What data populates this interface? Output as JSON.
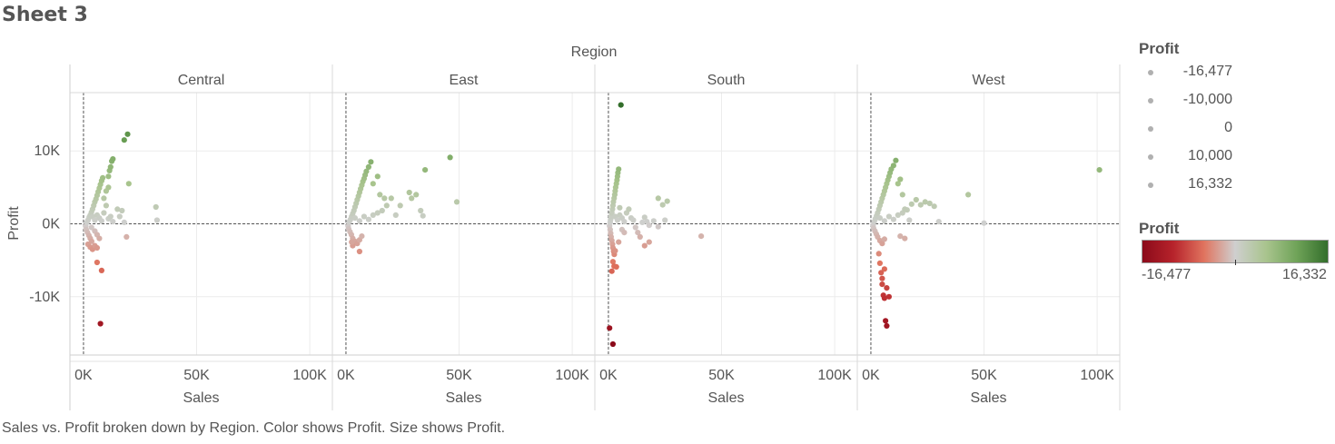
{
  "sheet": {
    "title": "Sheet 3"
  },
  "caption": "Sales vs. Profit broken down by Region.  Color shows Profit.  Size shows Profit.",
  "legends": {
    "size_title": "Profit",
    "size_items": [
      "-16,477",
      "-10,000",
      "0",
      "10,000",
      "16,332"
    ],
    "color_title": "Profit",
    "color_min_label": "-16,477",
    "color_max_label": "16,332",
    "color_stops": [
      "#8b0a1a",
      "#b7232b",
      "#e0745f",
      "#cfcfcf",
      "#a9c48e",
      "#6fa358",
      "#336e2b"
    ]
  },
  "chart_data": {
    "type": "scatter",
    "column_header": "Region",
    "xlabel": "Sales",
    "ylabel": "Profit",
    "x_ticks": [
      "0K",
      "50K",
      "100K"
    ],
    "y_ticks": [
      "10K",
      "0K",
      "-10K"
    ],
    "xlim": [
      -6000,
      110000
    ],
    "ylim": [
      -18000,
      18000
    ],
    "color_range": [
      -16477,
      16332
    ],
    "panels": [
      {
        "region": "Central",
        "points": [
          [
            1000,
            -300
          ],
          [
            1500,
            200
          ],
          [
            2000,
            500
          ],
          [
            2500,
            900
          ],
          [
            3000,
            1200
          ],
          [
            3500,
            1600
          ],
          [
            4000,
            2000
          ],
          [
            4500,
            2500
          ],
          [
            5000,
            3000
          ],
          [
            5500,
            3400
          ],
          [
            6000,
            3900
          ],
          [
            6500,
            4400
          ],
          [
            7000,
            4900
          ],
          [
            7500,
            5400
          ],
          [
            8000,
            5900
          ],
          [
            8500,
            6300
          ],
          [
            1200,
            -800
          ],
          [
            1800,
            -1200
          ],
          [
            2400,
            -1600
          ],
          [
            3000,
            -2000
          ],
          [
            3600,
            -2400
          ],
          [
            2000,
            -2800
          ],
          [
            3000,
            -3200
          ],
          [
            4000,
            -3500
          ],
          [
            5000,
            -3000
          ],
          [
            6000,
            -3300
          ],
          [
            4000,
            1000
          ],
          [
            5000,
            500
          ],
          [
            6000,
            1200
          ],
          [
            7000,
            800
          ],
          [
            8000,
            400
          ],
          [
            9000,
            1500
          ],
          [
            10000,
            2500
          ],
          [
            11000,
            700
          ],
          [
            12000,
            1000
          ],
          [
            13000,
            300
          ],
          [
            3500,
            -500
          ],
          [
            5000,
            -1000
          ],
          [
            6000,
            -1500
          ],
          [
            7000,
            -2000
          ],
          [
            11000,
            6500
          ],
          [
            11500,
            7300
          ],
          [
            12000,
            7800
          ],
          [
            12500,
            8600
          ],
          [
            13000,
            8900
          ],
          [
            18000,
            11500
          ],
          [
            19500,
            12300
          ],
          [
            10000,
            4500
          ],
          [
            11000,
            5000
          ],
          [
            9000,
            3500
          ],
          [
            15000,
            2000
          ],
          [
            17000,
            1800
          ],
          [
            20000,
            5500
          ],
          [
            16000,
            1000
          ],
          [
            18000,
            200
          ],
          [
            32000,
            2300
          ],
          [
            32500,
            500
          ],
          [
            19000,
            -1800
          ],
          [
            6000,
            -5300
          ],
          [
            8000,
            -6400
          ],
          [
            7500,
            -13700
          ]
        ]
      },
      {
        "region": "East",
        "points": [
          [
            1000,
            -300
          ],
          [
            1500,
            300
          ],
          [
            2000,
            600
          ],
          [
            2500,
            1000
          ],
          [
            3000,
            1400
          ],
          [
            3500,
            1800
          ],
          [
            4000,
            2300
          ],
          [
            4500,
            2800
          ],
          [
            5000,
            3300
          ],
          [
            5500,
            3800
          ],
          [
            6000,
            4300
          ],
          [
            6500,
            4800
          ],
          [
            7000,
            5300
          ],
          [
            7500,
            5800
          ],
          [
            8000,
            6200
          ],
          [
            8500,
            6700
          ],
          [
            9000,
            7200
          ],
          [
            10000,
            7800
          ],
          [
            11000,
            8500
          ],
          [
            1200,
            -700
          ],
          [
            1800,
            -1100
          ],
          [
            2400,
            -1500
          ],
          [
            3000,
            -2000
          ],
          [
            4000,
            -2400
          ],
          [
            5000,
            -2700
          ],
          [
            6000,
            -2200
          ],
          [
            7000,
            -1700
          ],
          [
            4000,
            800
          ],
          [
            6000,
            400
          ],
          [
            8000,
            1000
          ],
          [
            10000,
            600
          ],
          [
            12000,
            1200
          ],
          [
            14000,
            1500
          ],
          [
            16000,
            1800
          ],
          [
            18000,
            2500
          ],
          [
            20000,
            3500
          ],
          [
            22000,
            1200
          ],
          [
            14000,
            6500
          ],
          [
            12000,
            5500
          ],
          [
            15000,
            4000
          ],
          [
            17000,
            3500
          ],
          [
            24000,
            2500
          ],
          [
            28000,
            4300
          ],
          [
            29000,
            3500
          ],
          [
            31000,
            4000
          ],
          [
            33000,
            1800
          ],
          [
            35000,
            7400
          ],
          [
            34000,
            1100
          ],
          [
            46000,
            9100
          ],
          [
            49000,
            3000
          ],
          [
            6000,
            -3800
          ],
          [
            3000,
            -3000
          ],
          [
            2500,
            -2500
          ]
        ]
      },
      {
        "region": "South",
        "points": [
          [
            500,
            -300
          ],
          [
            800,
            200
          ],
          [
            1000,
            600
          ],
          [
            1200,
            1000
          ],
          [
            1500,
            1500
          ],
          [
            1800,
            2000
          ],
          [
            2000,
            2500
          ],
          [
            2200,
            3000
          ],
          [
            2500,
            3500
          ],
          [
            2800,
            4000
          ],
          [
            3000,
            4500
          ],
          [
            3200,
            5000
          ],
          [
            3500,
            5500
          ],
          [
            3800,
            6000
          ],
          [
            4000,
            6500
          ],
          [
            4200,
            7000
          ],
          [
            4500,
            7500
          ],
          [
            800,
            -800
          ],
          [
            1000,
            -1300
          ],
          [
            1200,
            -1800
          ],
          [
            1500,
            -2300
          ],
          [
            1800,
            -2800
          ],
          [
            2000,
            -3300
          ],
          [
            2300,
            -3800
          ],
          [
            2600,
            -4200
          ],
          [
            3000,
            -3700
          ],
          [
            2000,
            -5200
          ],
          [
            2500,
            -5800
          ],
          [
            1500,
            -6500
          ],
          [
            3500,
            -5900
          ],
          [
            4500,
            -2500
          ],
          [
            3000,
            1000
          ],
          [
            4000,
            500
          ],
          [
            5000,
            1200
          ],
          [
            6000,
            800
          ],
          [
            7000,
            300
          ],
          [
            8000,
            1500
          ],
          [
            9000,
            2000
          ],
          [
            10000,
            800
          ],
          [
            11000,
            500
          ],
          [
            12000,
            -500
          ],
          [
            13000,
            -1200
          ],
          [
            14000,
            -1800
          ],
          [
            15000,
            200
          ],
          [
            16000,
            900
          ],
          [
            17000,
            300
          ],
          [
            18000,
            -200
          ],
          [
            20000,
            400
          ],
          [
            22000,
            3500
          ],
          [
            24000,
            2600
          ],
          [
            26000,
            3100
          ],
          [
            25000,
            500
          ],
          [
            22000,
            -400
          ],
          [
            18000,
            -2500
          ],
          [
            16000,
            -3000
          ],
          [
            41000,
            -1700
          ],
          [
            5500,
            16300
          ],
          [
            500,
            -14300
          ],
          [
            2000,
            -16500
          ],
          [
            6000,
            -800
          ],
          [
            7000,
            -1200
          ],
          [
            5000,
            2200
          ]
        ]
      },
      {
        "region": "West",
        "points": [
          [
            1000,
            -200
          ],
          [
            1500,
            300
          ],
          [
            2000,
            700
          ],
          [
            2500,
            1100
          ],
          [
            3000,
            1500
          ],
          [
            3500,
            2000
          ],
          [
            4000,
            2500
          ],
          [
            4500,
            3000
          ],
          [
            5000,
            3500
          ],
          [
            5500,
            4000
          ],
          [
            6000,
            4500
          ],
          [
            6500,
            5000
          ],
          [
            7000,
            5500
          ],
          [
            7500,
            6000
          ],
          [
            8000,
            6500
          ],
          [
            8500,
            7000
          ],
          [
            9000,
            7500
          ],
          [
            10000,
            8000
          ],
          [
            11000,
            8700
          ],
          [
            1200,
            -600
          ],
          [
            1800,
            -1000
          ],
          [
            2400,
            -1400
          ],
          [
            3000,
            -1800
          ],
          [
            4000,
            -2300
          ],
          [
            5000,
            -2700
          ],
          [
            6000,
            -2100
          ],
          [
            4000,
            800
          ],
          [
            6000,
            400
          ],
          [
            8000,
            1000
          ],
          [
            10000,
            600
          ],
          [
            12000,
            1200
          ],
          [
            14000,
            1500
          ],
          [
            16000,
            1900
          ],
          [
            18000,
            2700
          ],
          [
            20000,
            3300
          ],
          [
            22000,
            2600
          ],
          [
            24000,
            3000
          ],
          [
            26000,
            2800
          ],
          [
            28000,
            2400
          ],
          [
            30000,
            300
          ],
          [
            14000,
            4000
          ],
          [
            12000,
            5500
          ],
          [
            13000,
            6100
          ],
          [
            15000,
            2000
          ],
          [
            17000,
            500
          ],
          [
            13000,
            -1700
          ],
          [
            15000,
            -2000
          ],
          [
            43000,
            4000
          ],
          [
            50000,
            100
          ],
          [
            101000,
            7400
          ],
          [
            3500,
            -4100
          ],
          [
            4000,
            -5400
          ],
          [
            4500,
            -6700
          ],
          [
            5000,
            -8300
          ],
          [
            5500,
            -9800
          ],
          [
            6000,
            -10200
          ],
          [
            8000,
            -10000
          ],
          [
            7000,
            -8800
          ],
          [
            6500,
            -13300
          ],
          [
            7000,
            -14000
          ],
          [
            5000,
            -7500
          ],
          [
            6000,
            -6200
          ]
        ]
      }
    ]
  }
}
